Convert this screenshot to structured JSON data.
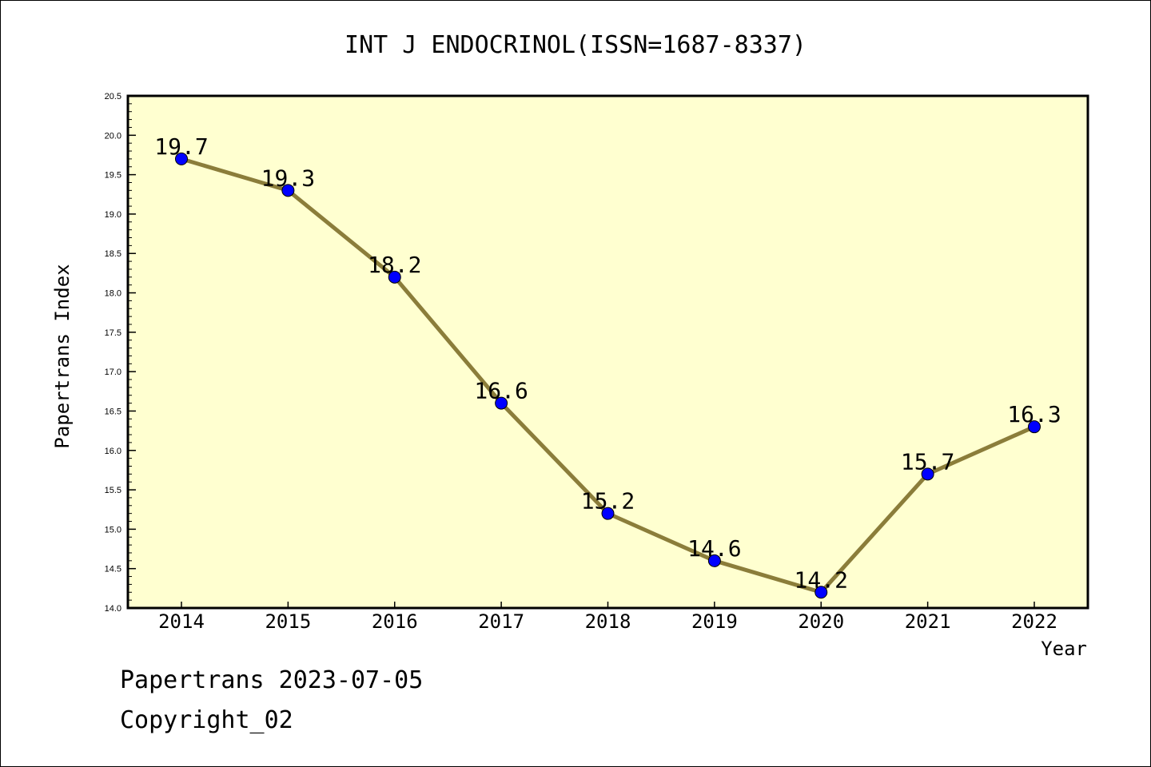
{
  "chart_data": {
    "type": "line",
    "title": "INT J ENDOCRINOL(ISSN=1687-8337)",
    "xlabel": "Year",
    "ylabel": "Papertrans Index",
    "categories": [
      "2014",
      "2015",
      "2016",
      "2017",
      "2018",
      "2019",
      "2020",
      "2021",
      "2022"
    ],
    "values": [
      19.7,
      19.3,
      18.2,
      16.6,
      15.2,
      14.6,
      14.2,
      15.7,
      16.3
    ],
    "data_labels": [
      "19.7",
      "19.3",
      "18.2",
      "16.6",
      "15.2",
      "14.6",
      "14.2",
      "15.7",
      "16.3"
    ],
    "ylim": [
      14.0,
      20.5
    ],
    "yticks": [
      "14.0",
      "14.5",
      "15.0",
      "15.5",
      "16.0",
      "16.5",
      "17.0",
      "17.5",
      "18.0",
      "18.5",
      "19.0",
      "19.5",
      "20.0",
      "20.5"
    ],
    "grid": false,
    "colors": {
      "plot_background": "#FFFFD0",
      "line": "#8B7D3A",
      "marker": "#0000FF"
    }
  },
  "footer": {
    "line1": "Papertrans 2023-07-05",
    "line2": "Copyright_02"
  }
}
